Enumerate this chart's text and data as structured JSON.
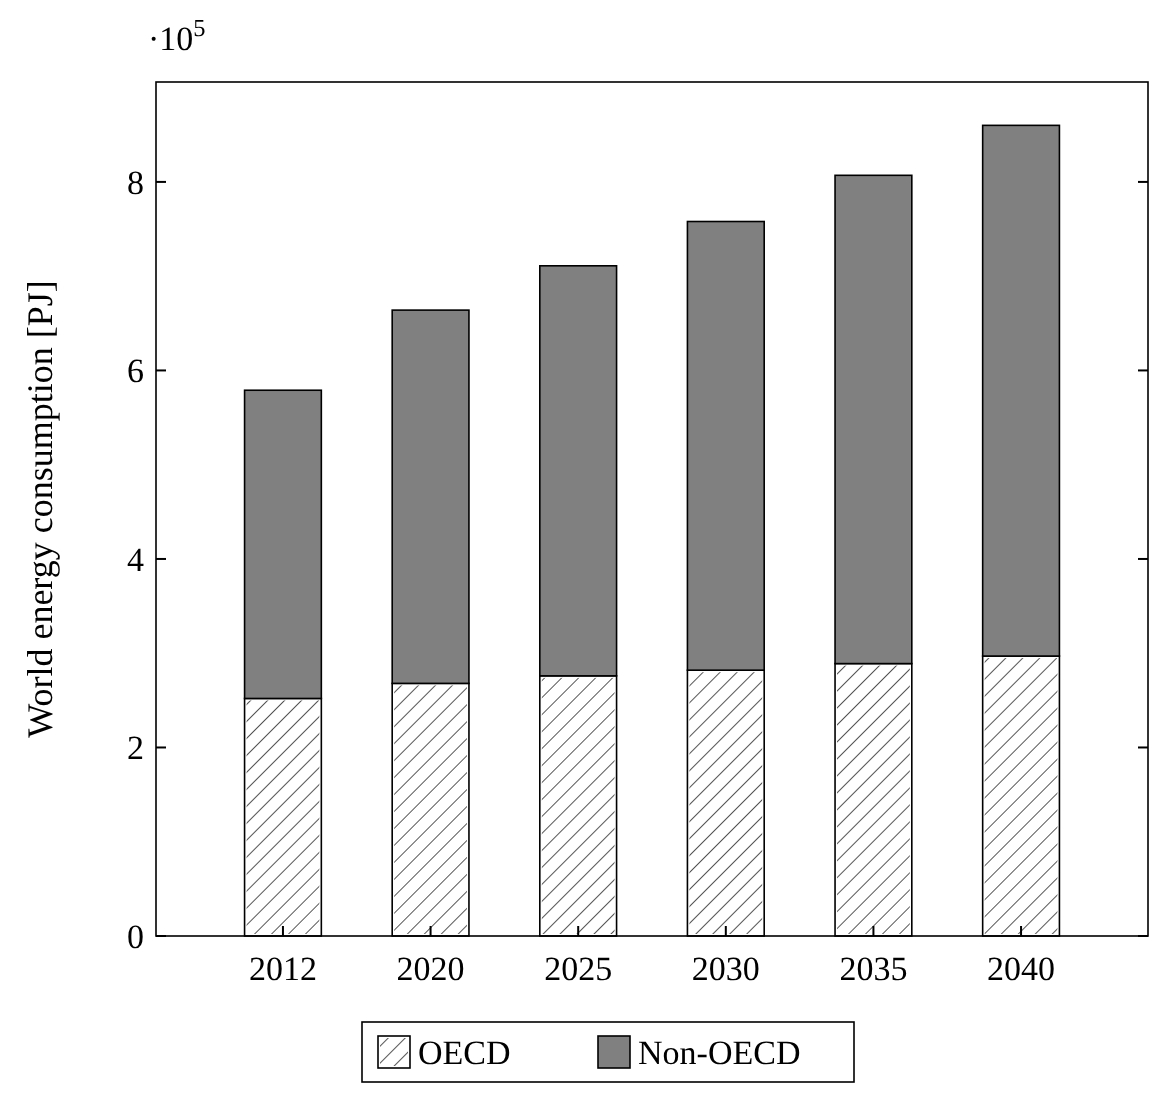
{
  "chart_data": {
    "type": "bar",
    "stacked": true,
    "ylabel": "World energy consumption [PJ]",
    "annotations": [
      "·10$^{5}$"
    ],
    "categories": [
      "2012",
      "2020",
      "2025",
      "2030",
      "2035",
      "2040"
    ],
    "series": [
      {
        "name": "OECD",
        "color": "#ffffff",
        "values": [
          2.52,
          2.68,
          2.76,
          2.82,
          2.89,
          2.97
        ]
      },
      {
        "name": "Non-OECD",
        "color": "#808080",
        "values": [
          3.27,
          3.96,
          4.35,
          4.76,
          5.18,
          5.63
        ]
      }
    ],
    "ylim": [
      0,
      9.06
    ],
    "yticks": [
      0,
      2,
      4,
      6,
      8
    ],
    "grid": false,
    "legend": "bottom"
  }
}
